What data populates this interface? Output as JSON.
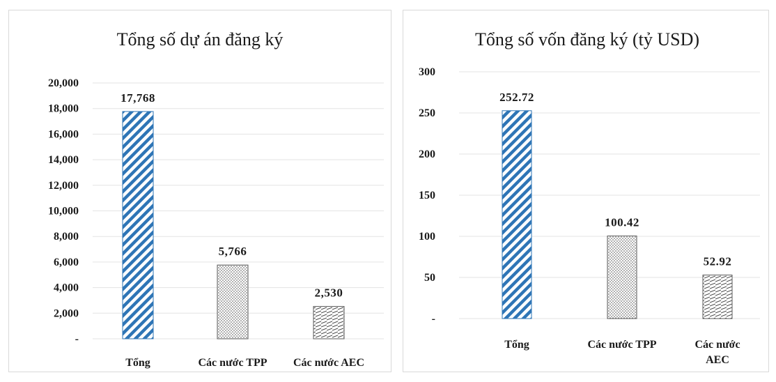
{
  "chart_data": [
    {
      "type": "bar",
      "title": "Tổng số dự án đăng ký",
      "categories": [
        "Tổng",
        "Các nước TPP",
        "Các nước AEC"
      ],
      "values": [
        17768,
        5766,
        2530
      ],
      "value_labels": [
        "17,768",
        "5,766",
        "2,530"
      ],
      "yticks": [
        "-",
        "2,000",
        "4,000",
        "6,000",
        "8,000",
        "10,000",
        "12,000",
        "14,000",
        "16,000",
        "18,000",
        "20,000"
      ],
      "ylim": [
        0,
        20000
      ],
      "grid": true,
      "patterns": [
        "blue-diagonal-stripes",
        "dotted",
        "horizontal-hatch"
      ],
      "colors": {
        "blue": "#2e75b6",
        "gray": "#595959"
      }
    },
    {
      "type": "bar",
      "title": "Tổng số vốn đăng ký (tỷ USD)",
      "categories": [
        "Tổng",
        "Các nước TPP",
        "Các nước AEC"
      ],
      "values": [
        252.72,
        100.42,
        52.92
      ],
      "value_labels": [
        "252.72",
        "100.42",
        "52.92"
      ],
      "yticks": [
        "-",
        "50",
        "100",
        "150",
        "200",
        "250",
        "300"
      ],
      "ylim": [
        0,
        300
      ],
      "grid": true,
      "patterns": [
        "blue-diagonal-stripes",
        "dotted",
        "horizontal-hatch"
      ],
      "colors": {
        "blue": "#2e75b6",
        "gray": "#595959"
      }
    }
  ]
}
